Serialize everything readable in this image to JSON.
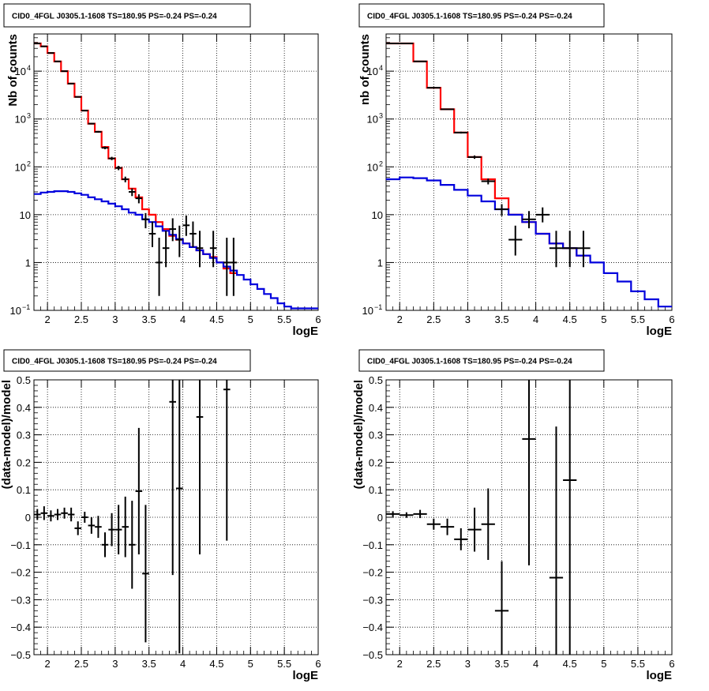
{
  "chart_data": [
    {
      "type": "line",
      "title": "CID0_4FGL J0305.1-1608 TS=180.95 PS=-0.24 PS=-0.24",
      "xlabel": "logE",
      "ylabel": "Nb of counts",
      "xlim": [
        1.8,
        6.0
      ],
      "ylim": [
        0.1,
        60000
      ],
      "yscale": "log",
      "grid": true,
      "xticks": [
        "2",
        "2.5",
        "3",
        "3.5",
        "4",
        "4.5",
        "5",
        "5.5",
        "6"
      ],
      "series": [
        {
          "style": "step",
          "color": "#ff0000",
          "edges": [
            1.8,
            1.9,
            2.0,
            2.1,
            2.2,
            2.3,
            2.4,
            2.5,
            2.6,
            2.7,
            2.8,
            2.9,
            3.0,
            3.1,
            3.2,
            3.3,
            3.4,
            3.5,
            3.6,
            3.7,
            3.8,
            3.9,
            4.0,
            4.1,
            4.2,
            4.3,
            4.4,
            4.5,
            4.6,
            4.7,
            4.8
          ],
          "values": [
            38000,
            33000,
            24000,
            16000,
            10000,
            5500,
            2900,
            1500,
            800,
            540,
            260,
            150,
            95,
            55,
            35,
            23,
            13,
            10,
            7,
            5,
            3.6,
            3.0,
            2.5,
            2.1,
            1.8,
            1.5,
            1.3,
            1.0,
            0.75,
            0.6
          ]
        },
        {
          "style": "step",
          "color": "#0000dd",
          "edges": [
            1.8,
            1.9,
            2.0,
            2.1,
            2.2,
            2.3,
            2.4,
            2.5,
            2.6,
            2.7,
            2.8,
            2.9,
            3.0,
            3.1,
            3.2,
            3.3,
            3.4,
            3.5,
            3.6,
            3.7,
            3.8,
            3.9,
            4.0,
            4.1,
            4.2,
            4.3,
            4.4,
            4.5,
            4.6,
            4.7,
            4.8,
            4.9,
            5.0,
            5.1,
            5.2,
            5.3,
            5.4,
            5.5,
            5.6,
            5.7,
            5.8,
            5.9,
            6.0
          ],
          "values": [
            27,
            29,
            30,
            31,
            31,
            30,
            28,
            26,
            23,
            21,
            19,
            17,
            15,
            13,
            11,
            10,
            8,
            7,
            5.7,
            4.6,
            3.8,
            3.1,
            2.5,
            2.1,
            1.8,
            1.5,
            1.25,
            1.0,
            0.82,
            0.68,
            0.55,
            0.44,
            0.35,
            0.28,
            0.22,
            0.18,
            0.14,
            0.12,
            0.11,
            0.11,
            0.11,
            0.11
          ]
        },
        {
          "style": "points",
          "color": "#000000",
          "x": [
            1.85,
            1.95,
            2.05,
            2.15,
            2.25,
            2.35,
            2.45,
            2.55,
            2.65,
            2.75,
            2.85,
            2.95,
            3.05,
            3.15,
            3.25,
            3.35,
            3.45,
            3.55,
            3.65,
            3.75,
            3.85,
            3.95,
            4.05,
            4.15,
            4.25,
            4.45,
            4.65,
            4.75
          ],
          "y": [
            38000,
            33000,
            24000,
            16000,
            10000,
            5500,
            2900,
            1500,
            800,
            540,
            250,
            150,
            95,
            55,
            30,
            22,
            8,
            4,
            1,
            2,
            5,
            3,
            6,
            4,
            2,
            2,
            1,
            1
          ],
          "yerr_lo": [
            190,
            180,
            150,
            125,
            100,
            75,
            55,
            40,
            28,
            23,
            16,
            12,
            9.7,
            7.4,
            5.5,
            4.7,
            2.8,
            1.9,
            0.8,
            1.2,
            2.2,
            1.7,
            2.4,
            1.9,
            1.2,
            1.2,
            0.8,
            0.8
          ],
          "yerr_hi": [
            190,
            180,
            150,
            125,
            100,
            75,
            55,
            40,
            28,
            23,
            16,
            12,
            9.7,
            7.4,
            5.5,
            4.7,
            2.8,
            3.2,
            2.3,
            2.6,
            3.4,
            2.9,
            3.6,
            3.2,
            2.6,
            2.6,
            2.3,
            2.3
          ]
        }
      ]
    },
    {
      "type": "line",
      "title": "CID0_4FGL J0305.1-1608 TS=180.95 PS=-0.24 PS=-0.24",
      "xlabel": "logE",
      "ylabel": "nb of counts",
      "xlim": [
        1.8,
        6.0
      ],
      "ylim": [
        0.1,
        60000
      ],
      "yscale": "log",
      "grid": true,
      "xticks": [
        "2",
        "2.5",
        "3",
        "3.5",
        "4",
        "4.5",
        "5",
        "5.5",
        "6"
      ],
      "series": [
        {
          "style": "step",
          "color": "#ff0000",
          "edges": [
            1.8,
            2.0,
            2.2,
            2.4,
            2.6,
            2.8,
            3.0,
            3.2,
            3.4,
            3.6,
            3.8,
            4.0,
            4.2,
            4.4,
            4.6,
            4.8
          ],
          "values": [
            38000,
            38000,
            16000,
            4500,
            1600,
            520,
            160,
            55,
            22,
            10,
            7,
            4,
            2.5,
            2,
            1.4
          ]
        },
        {
          "style": "step",
          "color": "#0000dd",
          "edges": [
            1.8,
            2.0,
            2.2,
            2.4,
            2.6,
            2.8,
            3.0,
            3.2,
            3.4,
            3.6,
            3.8,
            4.0,
            4.2,
            4.4,
            4.6,
            4.8,
            5.0,
            5.2,
            5.4,
            5.6,
            5.8,
            6.0
          ],
          "values": [
            55,
            60,
            58,
            52,
            42,
            33,
            25,
            19,
            13,
            10,
            7,
            4,
            2.5,
            2,
            1.4,
            1.0,
            0.6,
            0.4,
            0.25,
            0.17,
            0.12
          ]
        },
        {
          "style": "points",
          "color": "#000000",
          "x": [
            1.9,
            2.1,
            2.3,
            2.5,
            2.7,
            2.9,
            3.1,
            3.3,
            3.5,
            3.7,
            3.9,
            4.1,
            4.3,
            4.5,
            4.7
          ],
          "y": [
            38000,
            38000,
            16000,
            4500,
            1600,
            520,
            160,
            50,
            13,
            3,
            8,
            10,
            2,
            2,
            2
          ],
          "yerr_lo": [
            190,
            190,
            125,
            67,
            40,
            23,
            13,
            7,
            3.6,
            1.6,
            2.8,
            3.1,
            1.2,
            1.2,
            1.2
          ],
          "yerr_hi": [
            190,
            190,
            125,
            67,
            40,
            23,
            13,
            7,
            3.6,
            2.9,
            3.9,
            4.2,
            2.6,
            2.6,
            2.6
          ]
        }
      ]
    },
    {
      "type": "scatter",
      "title": "CID0_4FGL J0305.1-1608 TS=180.95 PS=-0.24 PS=-0.24",
      "xlabel": "logE",
      "ylabel": "(data-model)/model",
      "xlim": [
        1.8,
        6.0
      ],
      "ylim": [
        -0.5,
        0.5
      ],
      "grid": true,
      "xticks": [
        "2",
        "2.5",
        "3",
        "3.5",
        "4",
        "4.5",
        "5",
        "5.5",
        "6"
      ],
      "yticks": [
        "−0.5",
        "−0.4",
        "−0.3",
        "−0.2",
        "−0.1",
        "0",
        "0.1",
        "0.2",
        "0.3",
        "0.4",
        "0.5"
      ],
      "series": [
        {
          "color": "#000000",
          "x": [
            1.85,
            1.95,
            2.05,
            2.15,
            2.25,
            2.35,
            2.45,
            2.55,
            2.65,
            2.75,
            2.85,
            2.95,
            3.05,
            3.15,
            3.25,
            3.35,
            3.45,
            3.85,
            3.95,
            4.25,
            4.65
          ],
          "y": [
            0.01,
            0.015,
            0.005,
            0.01,
            0.015,
            0.01,
            -0.04,
            0.0,
            -0.03,
            -0.035,
            -0.1,
            -0.045,
            -0.045,
            -0.035,
            -0.1,
            0.095,
            -0.205,
            0.42,
            0.105,
            0.365,
            0.465
          ],
          "err": [
            0.02,
            0.025,
            0.02,
            0.02,
            0.02,
            0.025,
            0.025,
            0.02,
            0.03,
            0.04,
            0.045,
            0.06,
            0.09,
            0.11,
            0.16,
            0.23,
            0.25,
            0.63,
            0.6,
            0.5,
            0.55
          ]
        }
      ]
    },
    {
      "type": "scatter",
      "title": "CID0_4FGL J0305.1-1608 TS=180.95 PS=-0.24 PS=-0.24",
      "xlabel": "logE",
      "ylabel": "(data-model)/model",
      "xlim": [
        1.8,
        6.0
      ],
      "ylim": [
        -0.5,
        0.5
      ],
      "grid": true,
      "xticks": [
        "2",
        "2.5",
        "3",
        "3.5",
        "4",
        "4.5",
        "5",
        "5.5",
        "6"
      ],
      "yticks": [
        "−0.5",
        "−0.4",
        "−0.3",
        "−0.2",
        "−0.1",
        "0",
        "0.1",
        "0.2",
        "0.3",
        "0.4",
        "0.5"
      ],
      "series": [
        {
          "color": "#000000",
          "x": [
            1.9,
            2.1,
            2.3,
            2.5,
            2.7,
            2.9,
            3.1,
            3.3,
            3.5,
            3.9,
            4.3,
            4.5
          ],
          "y": [
            0.012,
            0.008,
            0.012,
            -0.025,
            -0.035,
            -0.08,
            -0.045,
            -0.025,
            -0.34,
            0.285,
            -0.22,
            0.135
          ],
          "err": [
            0.01,
            0.01,
            0.015,
            0.02,
            0.03,
            0.04,
            0.08,
            0.13,
            0.18,
            0.46,
            0.55,
            0.8
          ]
        }
      ]
    }
  ]
}
